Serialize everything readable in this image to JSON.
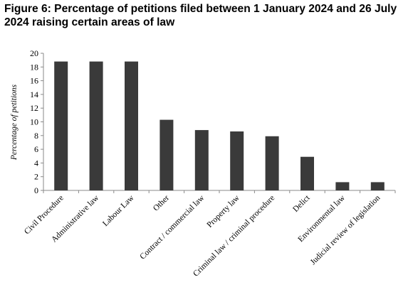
{
  "chart_data": {
    "type": "bar",
    "title": "Figure 6: Percentage of petitions filed between 1 January 2024 and 26 July 2024 raising certain areas of law",
    "xlabel": "",
    "ylabel": "Percentage of petitions",
    "ylim": [
      0,
      20
    ],
    "yticks": [
      0,
      2,
      4,
      6,
      8,
      10,
      12,
      14,
      16,
      18,
      20
    ],
    "grid": false,
    "legend": "none",
    "bar_color": "#3a3a3a",
    "categories": [
      "Civil Procedure",
      "Administrative law",
      "Labour Law",
      "Other",
      "Contract / commercial law",
      "Property law",
      "Criminal law / criminal procedure",
      "Delict",
      "Environmental law",
      "Judicial review of legislation"
    ],
    "values": [
      18.8,
      18.8,
      18.8,
      10.3,
      8.8,
      8.6,
      7.9,
      4.9,
      1.2,
      1.2
    ]
  }
}
